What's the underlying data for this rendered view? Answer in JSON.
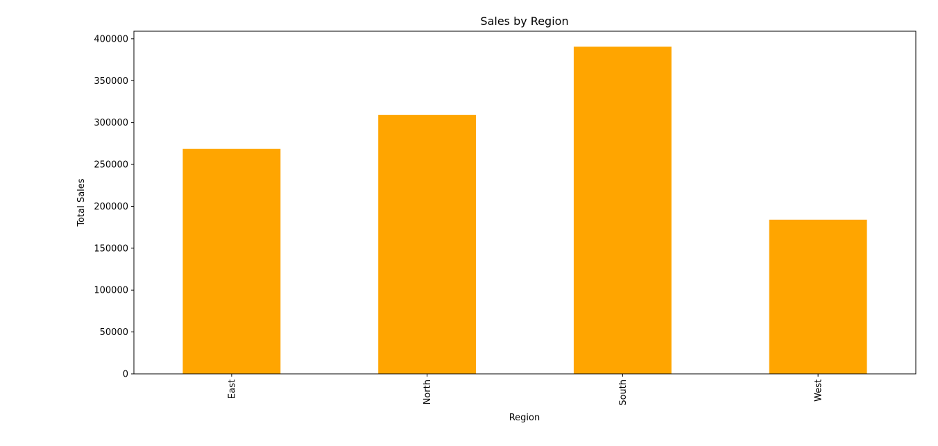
{
  "chart_data": {
    "type": "bar",
    "title": "Sales by Region",
    "xlabel": "Region",
    "ylabel": "Total Sales",
    "categories": [
      "East",
      "North",
      "South",
      "West"
    ],
    "values": [
      268500,
      309000,
      390500,
      184000
    ],
    "ylim": [
      0,
      409000
    ],
    "yticks": [
      0,
      50000,
      100000,
      150000,
      200000,
      250000,
      300000,
      350000,
      400000
    ],
    "grid": false,
    "legend": "none",
    "bar_color": "#FFA500",
    "x_tick_rotation": "vertical"
  }
}
